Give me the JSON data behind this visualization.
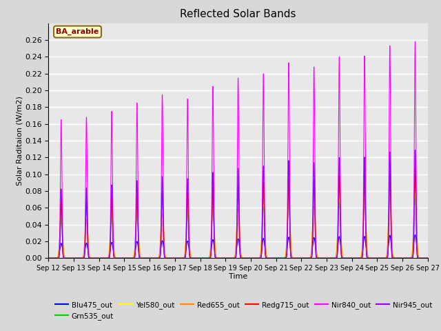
{
  "title": "Reflected Solar Bands",
  "xlabel": "Time",
  "ylabel": "Solar Raditaion (W/m2)",
  "annotation_text": "BA_arable",
  "annotation_facecolor": "#ffffcc",
  "annotation_edgecolor": "#8B6914",
  "annotation_textcolor": "#8B0000",
  "ylim": [
    0.0,
    0.28
  ],
  "yticks": [
    0.0,
    0.02,
    0.04,
    0.06,
    0.08,
    0.1,
    0.12,
    0.14,
    0.16,
    0.18,
    0.2,
    0.22,
    0.24,
    0.26
  ],
  "xtick_labels": [
    "Sep 12",
    "Sep 13",
    "Sep 14",
    "Sep 15",
    "Sep 16",
    "Sep 17",
    "Sep 18",
    "Sep 19",
    "Sep 20",
    "Sep 21",
    "Sep 22",
    "Sep 23",
    "Sep 24",
    "Sep 25",
    "Sep 26",
    "Sep 27"
  ],
  "n_days": 15,
  "bands": [
    {
      "name": "Blu475_out",
      "color": "#0000ff",
      "nir_ratio": 0.108
    },
    {
      "name": "Grn535_out",
      "color": "#00cc00",
      "nir_ratio": 0.28
    },
    {
      "name": "Yel580_out",
      "color": "#ffff00",
      "nir_ratio": 0.3
    },
    {
      "name": "Red655_out",
      "color": "#ff8800",
      "nir_ratio": 0.34
    },
    {
      "name": "Redg715_out",
      "color": "#ff0000",
      "nir_ratio": 0.41
    },
    {
      "name": "Nir840_out",
      "color": "#ff00ff",
      "nir_ratio": 1.0
    },
    {
      "name": "Nir945_out",
      "color": "#8800ff",
      "nir_ratio": 0.5
    }
  ],
  "nir840_peaks": [
    0.165,
    0.168,
    0.175,
    0.185,
    0.195,
    0.19,
    0.205,
    0.215,
    0.22,
    0.233,
    0.228,
    0.24,
    0.241,
    0.253,
    0.258
  ],
  "background_color": "#d8d8d8",
  "plot_bg_color": "#e8e8e8",
  "grid_color": "white"
}
